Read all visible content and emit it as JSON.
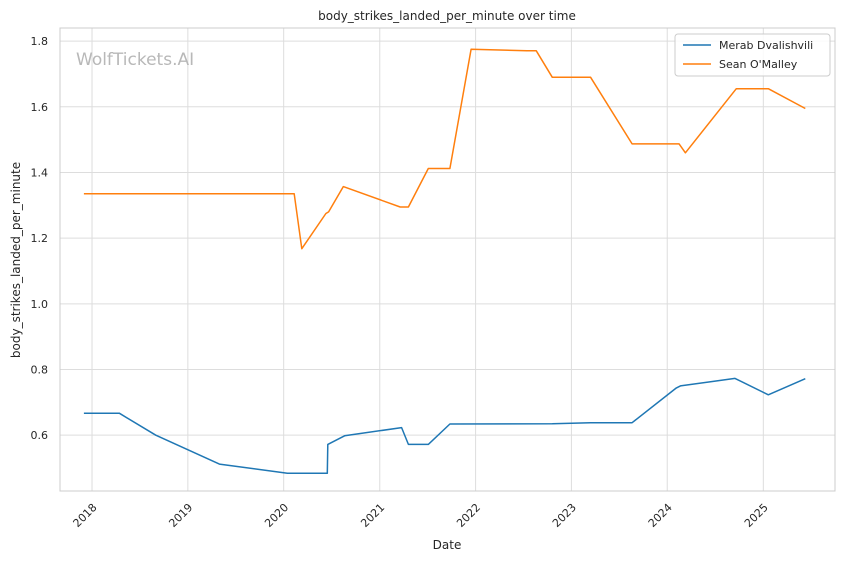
{
  "chart_data": {
    "type": "line",
    "title": "body_strikes_landed_per_minute over time",
    "xlabel": "Date",
    "ylabel": "body_strikes_landed_per_minute",
    "watermark": "WolfTickets.AI",
    "x_ticks": [
      "2018",
      "2019",
      "2020",
      "2021",
      "2022",
      "2023",
      "2024",
      "2025"
    ],
    "y_ticks": [
      "0.6",
      "0.8",
      "1.0",
      "1.2",
      "1.4",
      "1.6",
      "1.8"
    ],
    "xlim": [
      "2017-09-01",
      "2025-10-01"
    ],
    "ylim": [
      0.43,
      1.84
    ],
    "grid": true,
    "legend_position": "top-right",
    "series": [
      {
        "name": "Merab Dvalishvili",
        "color": "#1f77b4",
        "points": [
          [
            "2017-12-01",
            0.667
          ],
          [
            "2018-04-15",
            0.667
          ],
          [
            "2018-09-01",
            0.6
          ],
          [
            "2019-05-01",
            0.512
          ],
          [
            "2020-01-15",
            0.484
          ],
          [
            "2020-06-15",
            0.484
          ],
          [
            "2020-06-17",
            0.572
          ],
          [
            "2020-08-20",
            0.598
          ],
          [
            "2021-03-25",
            0.623
          ],
          [
            "2021-04-20",
            0.572
          ],
          [
            "2021-07-05",
            0.572
          ],
          [
            "2021-09-25",
            0.634
          ],
          [
            "2022-10-20",
            0.635
          ],
          [
            "2023-03-15",
            0.638
          ],
          [
            "2023-08-20",
            0.638
          ],
          [
            "2024-02-05",
            0.744
          ],
          [
            "2024-02-20",
            0.75
          ],
          [
            "2024-09-15",
            0.773
          ],
          [
            "2025-01-20",
            0.723
          ],
          [
            "2025-06-10",
            0.772
          ]
        ]
      },
      {
        "name": "Sean O'Malley",
        "color": "#ff7f0e",
        "points": [
          [
            "2017-12-01",
            1.335
          ],
          [
            "2020-02-10",
            1.335
          ],
          [
            "2020-03-10",
            1.168
          ],
          [
            "2020-06-10",
            1.275
          ],
          [
            "2020-06-20",
            1.28
          ],
          [
            "2020-08-15",
            1.357
          ],
          [
            "2021-03-20",
            1.295
          ],
          [
            "2021-04-20",
            1.295
          ],
          [
            "2021-07-05",
            1.412
          ],
          [
            "2021-09-25",
            1.412
          ],
          [
            "2021-12-15",
            1.775
          ],
          [
            "2022-07-15",
            1.771
          ],
          [
            "2022-08-20",
            1.771
          ],
          [
            "2022-10-20",
            1.69
          ],
          [
            "2023-03-15",
            1.69
          ],
          [
            "2023-08-20",
            1.487
          ],
          [
            "2024-02-15",
            1.487
          ],
          [
            "2024-03-10",
            1.46
          ],
          [
            "2024-09-20",
            1.655
          ],
          [
            "2025-01-20",
            1.655
          ],
          [
            "2025-06-10",
            1.595
          ]
        ]
      }
    ]
  }
}
